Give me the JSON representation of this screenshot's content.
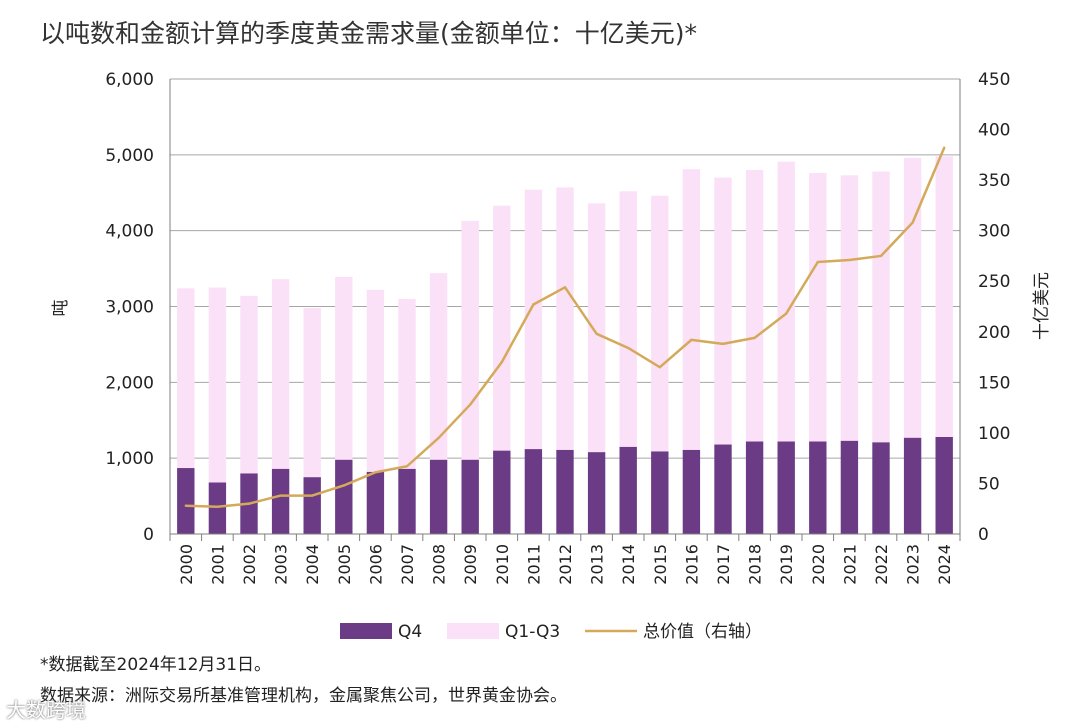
{
  "title": "以吨数和金额计算的季度黄金需求量(金额单位：十亿美元)*",
  "footnote": "*数据截至2024年12月31日。",
  "source": "数据来源：洲际交易所基准管理机构，金属聚焦公司，世界黄金协会。",
  "watermark": "大数跨境",
  "colors": {
    "q4": "#6b3b86",
    "q13": "#fbe1f7",
    "line": "#d4a95a",
    "grid": "#a6a6a6"
  },
  "chart_data": {
    "type": "bar",
    "categories": [
      "2000",
      "2001",
      "2002",
      "2003",
      "2004",
      "2005",
      "2006",
      "2007",
      "2008",
      "2009",
      "2010",
      "2011",
      "2012",
      "2013",
      "2014",
      "2015",
      "2016",
      "2017",
      "2018",
      "2019",
      "2020",
      "2021",
      "2022",
      "2023",
      "2024"
    ],
    "series": [
      {
        "name": "Q4",
        "type": "stacked-bar",
        "axis": "left",
        "values": [
          870,
          680,
          800,
          860,
          750,
          980,
          820,
          860,
          980,
          980,
          1100,
          1120,
          1110,
          1080,
          1150,
          1090,
          1110,
          1180,
          1220,
          1220,
          1220,
          1230,
          1210,
          1270,
          1280
        ]
      },
      {
        "name": "Q1-Q3",
        "type": "stacked-bar",
        "axis": "left",
        "values": [
          2370,
          2570,
          2340,
          2500,
          2230,
          2410,
          2400,
          2240,
          2460,
          3150,
          3230,
          3420,
          3460,
          3280,
          3370,
          3370,
          3700,
          3520,
          3580,
          3690,
          3540,
          3500,
          3570,
          3690,
          3700
        ]
      },
      {
        "name": "总价值（右轴）",
        "type": "line",
        "axis": "right",
        "values": [
          28,
          27,
          30,
          38,
          38,
          48,
          61,
          67,
          95,
          128,
          170,
          227,
          244,
          198,
          184,
          165,
          192,
          188,
          194,
          218,
          269,
          271,
          275,
          308,
          382
        ]
      }
    ],
    "ylabel": "吨",
    "ylim": [
      0,
      6000
    ],
    "yticks": [
      0,
      1000,
      2000,
      3000,
      4000,
      5000,
      6000
    ],
    "yticklabels": [
      "0",
      "1,000",
      "2,000",
      "3,000",
      "4,000",
      "5,000",
      "6,000"
    ],
    "y2label": "十亿美元",
    "y2lim": [
      0,
      450
    ],
    "y2ticks": [
      0,
      50,
      100,
      150,
      200,
      250,
      300,
      350,
      400,
      450
    ],
    "y2ticklabels": [
      "0",
      "50",
      "100",
      "150",
      "200",
      "250",
      "300",
      "350",
      "400",
      "450"
    ],
    "legend": [
      "Q4",
      "Q1-Q3",
      "总价值（右轴）"
    ]
  }
}
